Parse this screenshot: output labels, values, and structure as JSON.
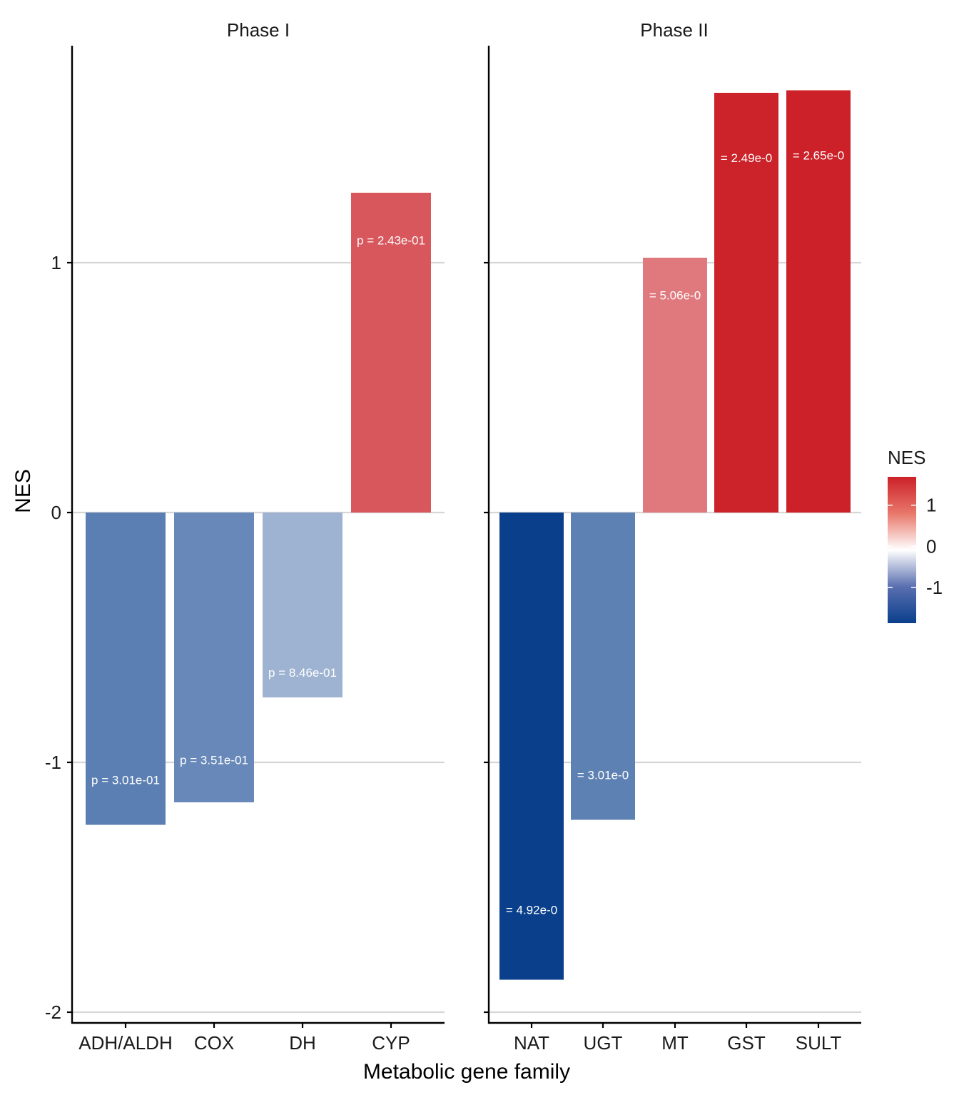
{
  "chart_data": {
    "type": "bar",
    "xlabel": "Metabolic gene family",
    "ylabel": "NES",
    "ylim": [
      -2.05,
      1.87
    ],
    "yticks": [
      -2,
      -1,
      0,
      1
    ],
    "ytick_labels": [
      "-2",
      "-1",
      "0",
      "1"
    ],
    "grid": "horizontal major",
    "colors": {
      "negative": "#0a3f8c",
      "zero": "#ffffff",
      "positive": "#cc2128"
    },
    "panels": [
      {
        "title": "Phase I",
        "categories": [
          "ADH/ALDH",
          "COX",
          "DH",
          "CYP"
        ],
        "values": [
          -1.25,
          -1.16,
          -0.74,
          1.28
        ],
        "labels": [
          "p =  3.01e-01",
          "p =  3.51e-01",
          "p =  8.46e-01",
          "p =  2.43e-01"
        ],
        "label_y": [
          -1.07,
          -0.99,
          -0.64,
          1.09
        ]
      },
      {
        "title": "Phase II",
        "categories": [
          "NAT",
          "UGT",
          "MT",
          "GST",
          "SULT"
        ],
        "values": [
          -1.87,
          -1.23,
          1.02,
          1.68,
          1.69
        ],
        "labels": [
          "=  4.92e-0",
          "=  3.01e-0",
          "=  5.06e-0",
          "=  2.49e-0",
          "=  2.65e-0"
        ],
        "label_y": [
          -1.59,
          -1.05,
          0.87,
          1.42,
          1.43
        ]
      }
    ],
    "legend": {
      "title": "NES",
      "position": "right",
      "breaks": [
        1,
        0,
        -1
      ],
      "break_labels": [
        "1",
        "0",
        "-1"
      ],
      "range": [
        -1.87,
        1.69
      ]
    }
  }
}
